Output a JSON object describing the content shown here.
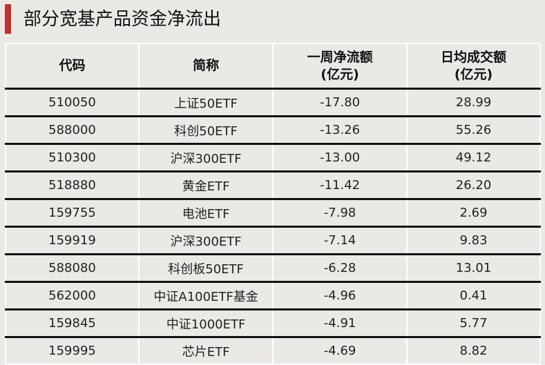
{
  "title": "部分宽基产品资金净流出",
  "accent_color": "#c0312f",
  "headers": [
    "代码",
    "简称",
    "一周净流额\n(亿元)",
    "日均成交额\n(亿元)"
  ],
  "rows": [
    [
      "510050",
      "上证50ETF",
      "-17.80",
      "28.99"
    ],
    [
      "588000",
      "科创50ETF",
      "-13.26",
      "55.26"
    ],
    [
      "510300",
      "沪深300ETF",
      "-13.00",
      "49.12"
    ],
    [
      "518880",
      "黄金ETF",
      "-11.42",
      "26.20"
    ],
    [
      "159755",
      "电池ETF",
      "-7.98",
      "2.69"
    ],
    [
      "159919",
      "沪深300ETF",
      "-7.14",
      "9.83"
    ],
    [
      "588080",
      "科创板50ETF",
      "-6.28",
      "13.01"
    ],
    [
      "562000",
      "中证A100ETF基金",
      "-4.96",
      "0.41"
    ],
    [
      "159845",
      "中证1000ETF",
      "-4.91",
      "5.77"
    ],
    [
      "159995",
      "芯片ETF",
      "-4.69",
      "8.82"
    ]
  ]
}
